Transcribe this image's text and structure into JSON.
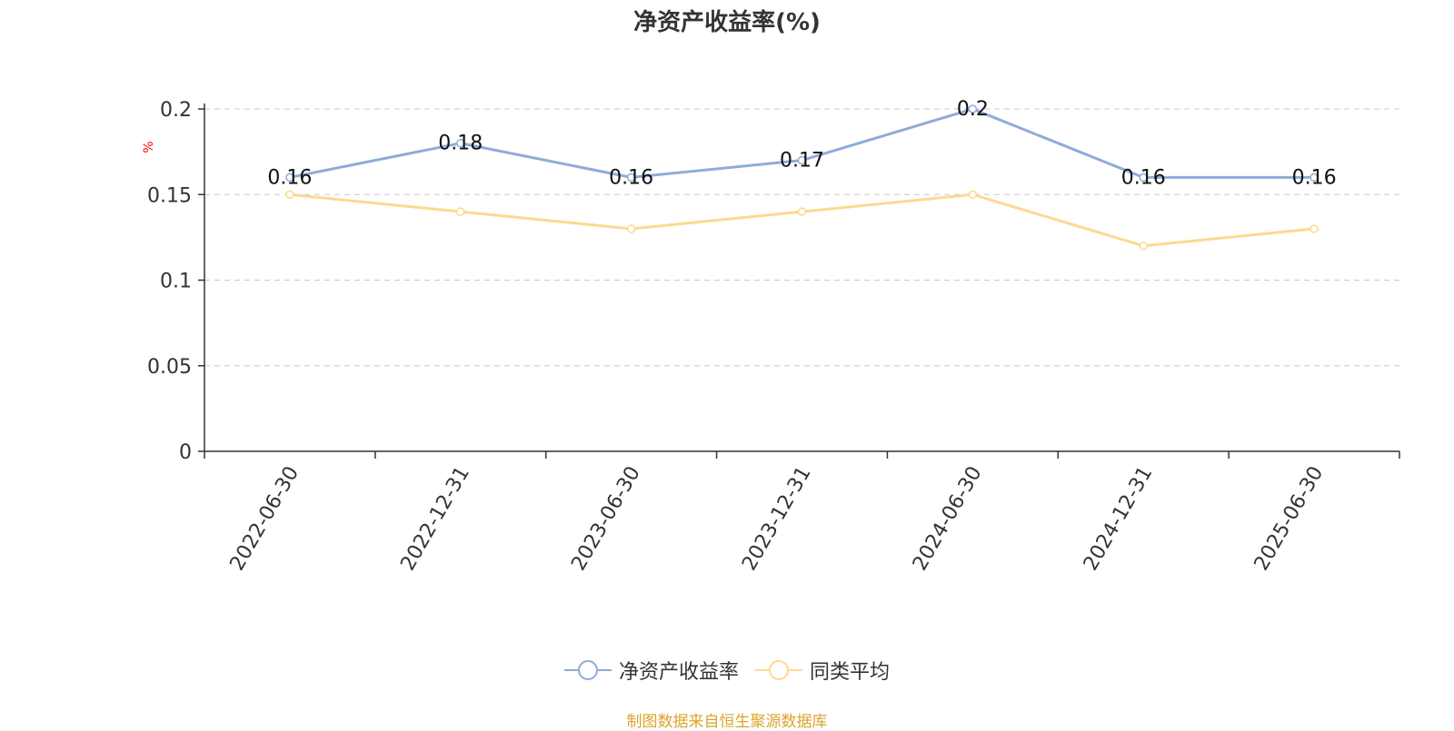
{
  "title": "净资产收益率(%)",
  "source_note": "制图数据来自恒生聚源数据库",
  "colors": {
    "series1": "#8eacd8",
    "series2": "#fdd98f",
    "axis": "#333333",
    "grid": "#c8c8c8",
    "unit": "#ff0000",
    "source": "#d9a52b"
  },
  "chart_data": {
    "type": "line",
    "title": "净资产收益率(%)",
    "ylabel": "%",
    "xlabel": "",
    "categories": [
      "2022-06-30",
      "2022-12-31",
      "2023-06-30",
      "2023-12-31",
      "2024-06-30",
      "2024-12-31",
      "2025-06-30"
    ],
    "ylim": [
      0,
      0.2
    ],
    "yticks": [
      "0",
      "0.05",
      "0.1",
      "0.15",
      "0.2"
    ],
    "grid": true,
    "legend_position": "bottom",
    "series": [
      {
        "name": "净资产收益率",
        "values": [
          0.16,
          0.18,
          0.16,
          0.17,
          0.2,
          0.16,
          0.16
        ],
        "labels": [
          "0.16",
          "0.18",
          "0.16",
          "0.17",
          "0.2",
          "0.16",
          "0.16"
        ],
        "show_labels": true
      },
      {
        "name": "同类平均",
        "values": [
          0.15,
          0.14,
          0.13,
          0.14,
          0.15,
          0.12,
          0.13
        ],
        "show_labels": false
      }
    ]
  }
}
